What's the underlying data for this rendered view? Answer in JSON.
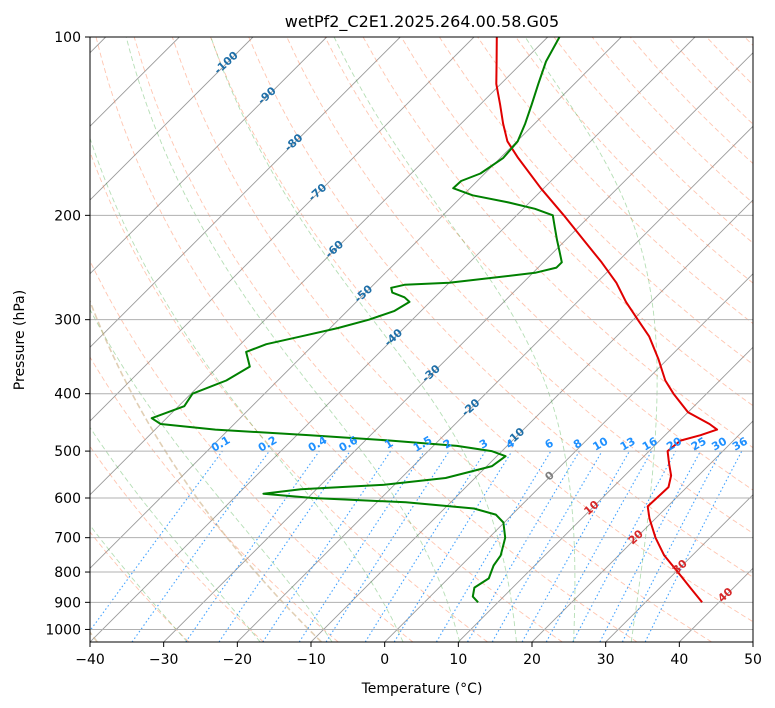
{
  "chart_data": {
    "type": "line",
    "subtype": "skew-T log-P diagram",
    "title": "wetPf2_C2E1.2025.264.00.58.G05",
    "xlabel": "Temperature (°C)",
    "ylabel": "Pressure (hPa)",
    "xlim": [
      -40,
      50
    ],
    "ylim": [
      1050,
      100
    ],
    "x_ticks": [
      -40,
      -30,
      -20,
      -10,
      0,
      10,
      20,
      30,
      40,
      50
    ],
    "y_ticks": [
      1000,
      900,
      800,
      700,
      600,
      500,
      400,
      300,
      200,
      100
    ],
    "series": [
      {
        "name": "temperature",
        "color": "#e00000",
        "points": [
          {
            "p": 900,
            "t": 37.7
          },
          {
            "p": 850,
            "t": 34.1
          },
          {
            "p": 800,
            "t": 30.3
          },
          {
            "p": 750,
            "t": 26.2
          },
          {
            "p": 700,
            "t": 22.6
          },
          {
            "p": 650,
            "t": 19.2
          },
          {
            "p": 620,
            "t": 17.3
          },
          {
            "p": 600,
            "t": 17.4
          },
          {
            "p": 575,
            "t": 17.5
          },
          {
            "p": 550,
            "t": 16.3
          },
          {
            "p": 525,
            "t": 14.4
          },
          {
            "p": 500,
            "t": 12.5
          },
          {
            "p": 480,
            "t": 12.8
          },
          {
            "p": 470,
            "t": 14.8
          },
          {
            "p": 460,
            "t": 16.3
          },
          {
            "p": 450,
            "t": 14.5
          },
          {
            "p": 430,
            "t": 10.0
          },
          {
            "p": 400,
            "t": 5.5
          },
          {
            "p": 380,
            "t": 2.6
          },
          {
            "p": 350,
            "t": -1.2
          },
          {
            "p": 320,
            "t": -5.6
          },
          {
            "p": 300,
            "t": -9.4
          },
          {
            "p": 280,
            "t": -13.4
          },
          {
            "p": 260,
            "t": -17.3
          },
          {
            "p": 240,
            "t": -22.1
          },
          {
            "p": 220,
            "t": -27.6
          },
          {
            "p": 200,
            "t": -33.6
          },
          {
            "p": 180,
            "t": -40.4
          },
          {
            "p": 160,
            "t": -47.6
          },
          {
            "p": 150,
            "t": -51.3
          },
          {
            "p": 140,
            "t": -54.3
          },
          {
            "p": 130,
            "t": -57.3
          },
          {
            "p": 120,
            "t": -60.6
          },
          {
            "p": 110,
            "t": -63.6
          },
          {
            "p": 100,
            "t": -66.9
          }
        ]
      },
      {
        "name": "dewpoint",
        "color": "#008000",
        "points": [
          {
            "p": 900,
            "t": 7.3
          },
          {
            "p": 880,
            "t": 5.8
          },
          {
            "p": 850,
            "t": 4.8
          },
          {
            "p": 820,
            "t": 5.5
          },
          {
            "p": 780,
            "t": 4.4
          },
          {
            "p": 750,
            "t": 4.0
          },
          {
            "p": 700,
            "t": 2.2
          },
          {
            "p": 660,
            "t": -0.1
          },
          {
            "p": 640,
            "t": -2.2
          },
          {
            "p": 625,
            "t": -6.0
          },
          {
            "p": 610,
            "t": -16.1
          },
          {
            "p": 600,
            "t": -29.3
          },
          {
            "p": 590,
            "t": -36.6
          },
          {
            "p": 580,
            "t": -32.1
          },
          {
            "p": 570,
            "t": -21.4
          },
          {
            "p": 555,
            "t": -14.0
          },
          {
            "p": 530,
            "t": -9.3
          },
          {
            "p": 510,
            "t": -8.8
          },
          {
            "p": 500,
            "t": -11.4
          },
          {
            "p": 490,
            "t": -16.8
          },
          {
            "p": 480,
            "t": -26.5
          },
          {
            "p": 470,
            "t": -38.2
          },
          {
            "p": 460,
            "t": -51.8
          },
          {
            "p": 450,
            "t": -60.0
          },
          {
            "p": 440,
            "t": -62.0
          },
          {
            "p": 420,
            "t": -59.2
          },
          {
            "p": 400,
            "t": -59.8
          },
          {
            "p": 380,
            "t": -57.0
          },
          {
            "p": 360,
            "t": -55.7
          },
          {
            "p": 340,
            "t": -58.2
          },
          {
            "p": 330,
            "t": -56.5
          },
          {
            "p": 320,
            "t": -52.8
          },
          {
            "p": 310,
            "t": -49.0
          },
          {
            "p": 300,
            "t": -45.9
          },
          {
            "p": 290,
            "t": -43.6
          },
          {
            "p": 280,
            "t": -42.8
          },
          {
            "p": 275,
            "t": -44.1
          },
          {
            "p": 270,
            "t": -46.4
          },
          {
            "p": 265,
            "t": -47.2
          },
          {
            "p": 262,
            "t": -45.8
          },
          {
            "p": 260,
            "t": -40.0
          },
          {
            "p": 250,
            "t": -29.7
          },
          {
            "p": 245,
            "t": -27.5
          },
          {
            "p": 240,
            "t": -27.5
          },
          {
            "p": 230,
            "t": -29.3
          },
          {
            "p": 220,
            "t": -31.2
          },
          {
            "p": 210,
            "t": -33.1
          },
          {
            "p": 200,
            "t": -35.1
          },
          {
            "p": 195,
            "t": -38.4
          },
          {
            "p": 190,
            "t": -43.1
          },
          {
            "p": 185,
            "t": -48.7
          },
          {
            "p": 180,
            "t": -52.3
          },
          {
            "p": 175,
            "t": -52.2
          },
          {
            "p": 170,
            "t": -50.6
          },
          {
            "p": 160,
            "t": -49.6
          },
          {
            "p": 150,
            "t": -49.9
          },
          {
            "p": 140,
            "t": -51.3
          },
          {
            "p": 130,
            "t": -53.0
          },
          {
            "p": 120,
            "t": -54.9
          },
          {
            "p": 110,
            "t": -56.9
          },
          {
            "p": 100,
            "t": -58.4
          }
        ]
      }
    ],
    "isotherm_step_c": 10,
    "isotherm_labels": [
      "-100",
      "-90",
      "-80",
      "-70",
      "-60",
      "-50",
      "-40",
      "-30",
      "-20",
      "-10",
      "0",
      "10",
      "20",
      "30",
      "40"
    ],
    "isotherm_label_colors": {
      "cold": "#1f6fa8",
      "zero": "#7f7f7f",
      "warm": "#d62728"
    },
    "mixing_ratio_labels": [
      "0.1",
      "0.2",
      "0.4",
      "0.6",
      "1",
      "1.5",
      "2",
      "3",
      "4",
      "6",
      "8",
      "10",
      "13",
      "16",
      "20",
      "25",
      "30",
      "36"
    ],
    "mixing_ratio_color": "#1e90ff",
    "dry_adiabat_color": "#ff7f50",
    "moist_adiabat_color": "#2ca02c",
    "reference_color": "#c8a878",
    "grid": true
  }
}
